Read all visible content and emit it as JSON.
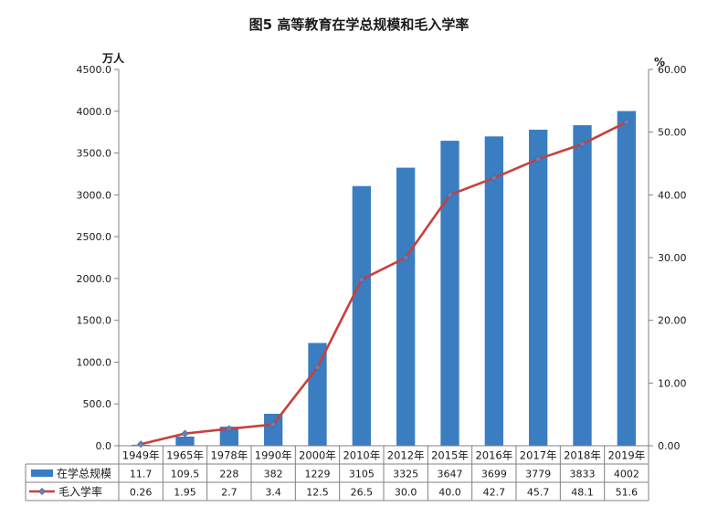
{
  "chart_data": {
    "type": "bar",
    "title": "图5  高等教育在学总规模和毛入学率",
    "left_axis_unit": "万人",
    "right_axis_unit": "%",
    "categories": [
      "1949年",
      "1965年",
      "1978年",
      "1990年",
      "2000年",
      "2010年",
      "2012年",
      "2015年",
      "2016年",
      "2017年",
      "2018年",
      "2019年"
    ],
    "left_ylim": [
      0,
      4500
    ],
    "left_ticks": [
      "0.0",
      "500.0",
      "1000.0",
      "1500.0",
      "2000.0",
      "2500.0",
      "3000.0",
      "3500.0",
      "4000.0",
      "4500.0"
    ],
    "right_ylim": [
      0,
      60
    ],
    "right_ticks": [
      "0.00",
      "10.00",
      "20.00",
      "30.00",
      "40.00",
      "50.00",
      "60.00"
    ],
    "grid": false,
    "data_table": true,
    "series": [
      {
        "name": "在学总规模",
        "type": "bar",
        "axis": "left",
        "color": "#3a7dc0",
        "values": [
          11.7,
          109.5,
          228,
          382,
          1229,
          3105,
          3325,
          3647,
          3699,
          3779,
          3833,
          4002
        ],
        "labels": [
          "11.7",
          "109.5",
          "228",
          "382",
          "1229",
          "3105",
          "3325",
          "3647",
          "3699",
          "3779",
          "3833",
          "4002"
        ]
      },
      {
        "name": "毛入学率",
        "type": "line",
        "axis": "right",
        "color": "#c8403d",
        "marker_color": "#6a7fb0",
        "values": [
          0.26,
          1.95,
          2.7,
          3.4,
          12.5,
          26.5,
          30.0,
          40.0,
          42.7,
          45.7,
          48.1,
          51.6
        ],
        "labels": [
          "0.26",
          "1.95",
          "2.7",
          "3.4",
          "12.5",
          "26.5",
          "30.0",
          "40.0",
          "42.7",
          "45.7",
          "48.1",
          "51.6"
        ]
      }
    ]
  }
}
